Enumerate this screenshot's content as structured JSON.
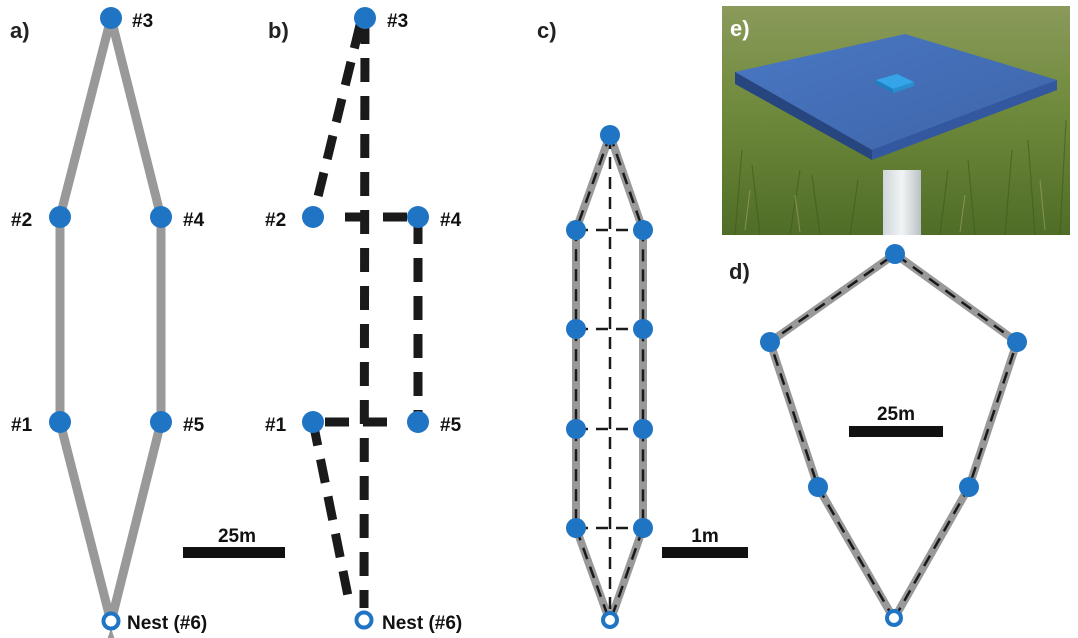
{
  "colors": {
    "route": "#999999",
    "dash": "#1a1a1a",
    "node": "#1f74c4",
    "nest_fill": "#ffffff",
    "scalebar": "#111111",
    "panel_label": "#222222"
  },
  "panel_a": {
    "label": "a)",
    "nodes": {
      "n1": "#1",
      "n2": "#2",
      "n3": "#3",
      "n4": "#4",
      "n5": "#5",
      "nest": "Nest (#6)"
    },
    "scale": "25m"
  },
  "panel_b": {
    "label": "b)",
    "nodes": {
      "n1": "#1",
      "n2": "#2",
      "n3": "#3",
      "n4": "#4",
      "n5": "#5",
      "nest": "Nest (#6)"
    }
  },
  "panel_c": {
    "label": "c)",
    "scale": "1m"
  },
  "panel_d": {
    "label": "d)",
    "scale": "25m"
  },
  "panel_e": {
    "label": "e)",
    "photo": "feeder platform photo"
  }
}
